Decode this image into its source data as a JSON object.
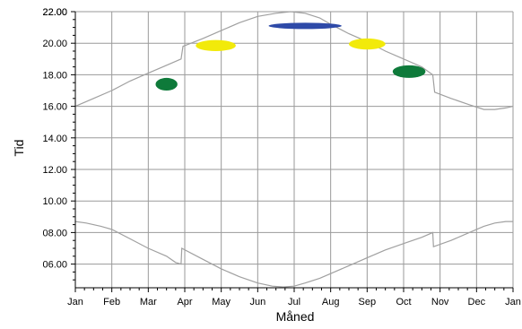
{
  "chart_data": {
    "type": "line",
    "xlabel": "Måned",
    "ylabel": "Tid",
    "xlim": [
      0,
      12
    ],
    "ylim": [
      4.5,
      22.0
    ],
    "x_tick_labels": [
      "Jan",
      "Feb",
      "Mar",
      "Apr",
      "May",
      "Jun",
      "Jul",
      "Aug",
      "Sep",
      "Oct",
      "Nov",
      "Dec",
      "Jan"
    ],
    "y_tick_labels": [
      "06.00",
      "08.00",
      "10.00",
      "12.00",
      "14.00",
      "16.00",
      "18.00",
      "20.00",
      "22.00"
    ],
    "y_tick_values": [
      6,
      8,
      10,
      12,
      14,
      16,
      18,
      20,
      22
    ],
    "grid": true,
    "line_color": "#a0a0a0",
    "series": [
      {
        "kind": "line",
        "points": [
          [
            0,
            16.0
          ],
          [
            0.5,
            16.5
          ],
          [
            1,
            17.0
          ],
          [
            1.5,
            17.6
          ],
          [
            2,
            18.1
          ],
          [
            2.5,
            18.6
          ],
          [
            2.9,
            19.0
          ],
          [
            2.95,
            19.8
          ],
          [
            3.5,
            20.3
          ],
          [
            4,
            20.8
          ],
          [
            4.5,
            21.3
          ],
          [
            5,
            21.7
          ],
          [
            5.5,
            21.9
          ],
          [
            5.9,
            22.0
          ],
          [
            6.3,
            21.9
          ],
          [
            6.7,
            21.6
          ],
          [
            7,
            21.2
          ],
          [
            7.5,
            20.6
          ],
          [
            8,
            20.1
          ],
          [
            8.5,
            19.5
          ],
          [
            9,
            19.0
          ],
          [
            9.5,
            18.5
          ],
          [
            9.8,
            18.0
          ],
          [
            9.85,
            16.9
          ],
          [
            10.3,
            16.5
          ],
          [
            10.8,
            16.1
          ],
          [
            11.2,
            15.8
          ],
          [
            11.5,
            15.8
          ],
          [
            11.8,
            15.9
          ],
          [
            12,
            16.0
          ]
        ]
      },
      {
        "kind": "line",
        "points": [
          [
            0,
            8.7
          ],
          [
            0.3,
            8.6
          ],
          [
            0.7,
            8.4
          ],
          [
            1,
            8.2
          ],
          [
            1.5,
            7.6
          ],
          [
            2,
            7.0
          ],
          [
            2.5,
            6.5
          ],
          [
            2.75,
            6.1
          ],
          [
            2.9,
            6.0
          ],
          [
            2.92,
            7.0
          ],
          [
            3.5,
            6.3
          ],
          [
            4,
            5.7
          ],
          [
            4.5,
            5.2
          ],
          [
            5,
            4.8
          ],
          [
            5.4,
            4.6
          ],
          [
            5.7,
            4.55
          ],
          [
            6,
            4.6
          ],
          [
            6.3,
            4.8
          ],
          [
            6.7,
            5.1
          ],
          [
            7,
            5.4
          ],
          [
            7.5,
            5.9
          ],
          [
            8,
            6.4
          ],
          [
            8.5,
            6.9
          ],
          [
            9,
            7.3
          ],
          [
            9.5,
            7.7
          ],
          [
            9.8,
            8.0
          ],
          [
            9.82,
            7.1
          ],
          [
            10.3,
            7.5
          ],
          [
            10.8,
            8.0
          ],
          [
            11.2,
            8.4
          ],
          [
            11.5,
            8.6
          ],
          [
            11.8,
            8.7
          ],
          [
            12,
            8.7
          ]
        ]
      },
      {
        "kind": "blob",
        "color": "#0e7a3a",
        "x_range": [
          2.2,
          2.8
        ],
        "y_range": [
          17.0,
          17.8
        ]
      },
      {
        "kind": "blob",
        "color": "#f2ea0a",
        "x_range": [
          3.3,
          4.4
        ],
        "y_range": [
          19.5,
          20.2
        ]
      },
      {
        "kind": "blob",
        "color": "#2e4aa8",
        "x_range": [
          5.3,
          7.3
        ],
        "y_range": [
          20.9,
          21.3
        ]
      },
      {
        "kind": "blob",
        "color": "#f2ea0a",
        "x_range": [
          7.5,
          8.5
        ],
        "y_range": [
          19.6,
          20.3
        ]
      },
      {
        "kind": "blob",
        "color": "#0e7a3a",
        "x_range": [
          8.7,
          9.6
        ],
        "y_range": [
          17.8,
          18.6
        ]
      }
    ]
  }
}
